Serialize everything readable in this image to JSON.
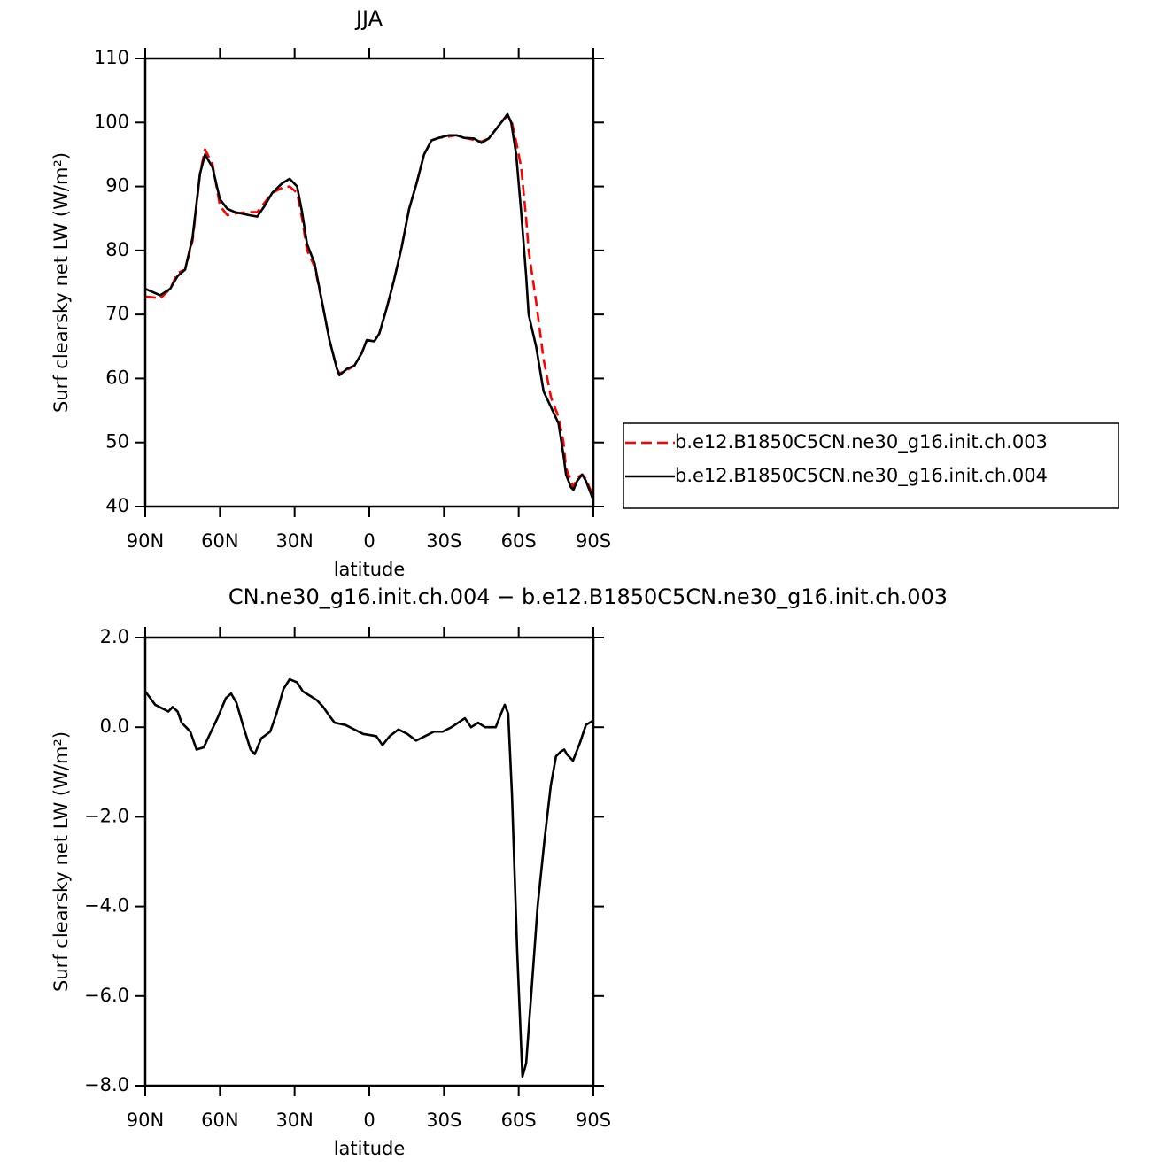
{
  "chart_data": [
    {
      "type": "line",
      "title": "JJA",
      "x_label": "latitude",
      "y_label": "Surf clearsky net LW (W/m²)",
      "x": [
        90,
        87,
        84,
        80,
        77,
        74,
        71,
        68,
        66,
        63,
        60,
        57,
        54,
        48,
        45,
        42,
        39,
        35,
        32,
        29,
        27,
        25,
        22,
        19,
        16,
        13,
        12,
        9,
        6,
        3,
        1,
        -2,
        -4,
        -7,
        -10,
        -13,
        -16,
        -19,
        -22,
        -25,
        -28,
        -32,
        -35,
        -38,
        -42,
        -45,
        -48,
        -51,
        -54,
        -55.5,
        -57,
        -59,
        -61,
        -63,
        -64,
        -67,
        -70,
        -73,
        -76,
        -78,
        -79,
        -81,
        -82,
        -83.5,
        -85.5,
        -87,
        -90
      ],
      "series": [
        {
          "name": "b.e12.B1850C5CN.ne30_g16.init.ch.003",
          "color": "#ff0000",
          "dashed": true,
          "values": [
            72.8,
            72.7,
            72.5,
            74,
            76.5,
            77,
            81.5,
            92,
            95.8,
            93.5,
            87,
            85.5,
            85.8,
            86,
            86,
            87.5,
            89,
            89.8,
            90,
            89,
            85,
            80,
            77.5,
            72,
            66,
            61.5,
            60.8,
            61.3,
            62,
            64,
            66,
            65.8,
            67,
            71,
            75.5,
            80.5,
            86.5,
            90.5,
            95,
            97.2,
            97.6,
            97.8,
            98,
            97.6,
            97.3,
            97,
            97.5,
            99,
            100.5,
            101,
            100.5,
            97,
            93,
            85,
            80,
            72,
            63,
            57,
            54,
            50,
            46,
            44,
            43,
            44.5,
            45,
            44.3,
            41.5
          ]
        },
        {
          "name": "b.e12.B1850C5CN.ne30_g16.init.ch.004",
          "color": "#000000",
          "dashed": false,
          "values": [
            74,
            73.5,
            73,
            74,
            76,
            77,
            82,
            92,
            95,
            93,
            88,
            86.5,
            86,
            85.5,
            85.3,
            87,
            89,
            90.5,
            91.2,
            90,
            86,
            81,
            78,
            72,
            66,
            61.5,
            60.5,
            61.5,
            62,
            64,
            66,
            65.8,
            67,
            71,
            75.5,
            80.5,
            86.5,
            90.5,
            95,
            97.2,
            97.6,
            98,
            98,
            97.6,
            97.5,
            96.8,
            97.5,
            99,
            100.5,
            101.3,
            100,
            95,
            86,
            76,
            70,
            65,
            58,
            55.5,
            53,
            48,
            45,
            43,
            42.6,
            44,
            45,
            44,
            41
          ]
        }
      ],
      "xlim": [
        90,
        -90
      ],
      "xticks": [
        {
          "value": 90,
          "label": "90N"
        },
        {
          "value": 60,
          "label": "60N"
        },
        {
          "value": 30,
          "label": "30N"
        },
        0,
        {
          "value": -30,
          "label": "30S"
        },
        {
          "value": -60,
          "label": "60S"
        },
        {
          "value": -90,
          "label": "90S"
        }
      ],
      "ylim": [
        40,
        110
      ],
      "yticks": [
        40,
        50,
        60,
        70,
        80,
        90,
        100,
        110
      ],
      "legend": "right"
    },
    {
      "type": "line",
      "title": "CN.ne30_g16.init.ch.004 − b.e12.B1850C5CN.ne30_g16.init.ch.003",
      "x_label": "latitude",
      "y_label": "Surf clearsky net LW (W/m²)",
      "x": [
        90,
        86,
        82.5,
        80.7,
        79,
        77,
        75.4,
        73.6,
        71.9,
        69.4,
        66.5,
        64,
        61,
        57.6,
        55.5,
        53.4,
        50.5,
        47.7,
        46,
        43.4,
        39.8,
        37.3,
        34.5,
        32,
        29,
        26.7,
        23.8,
        21,
        18.5,
        16,
        13.9,
        9.6,
        6,
        2.5,
        -2.8,
        -5.3,
        -8.2,
        -11.7,
        -15.3,
        -18.8,
        -22.4,
        -26,
        -29.5,
        -33,
        -38.4,
        -40.9,
        -43.7,
        -46.5,
        -50.8,
        -52.9,
        -54.4,
        -55.8,
        -57.3,
        -59.4,
        -61.5,
        -63,
        -65,
        -67.6,
        -70.4,
        -72.9,
        -75,
        -76.8,
        -78.3,
        -79.3,
        -81.8,
        -84.6,
        -87,
        -90
      ],
      "values": [
        0.8,
        0.5,
        0.4,
        0.35,
        0.45,
        0.35,
        0.1,
        0,
        -0.1,
        -0.5,
        -0.45,
        -0.15,
        0.2,
        0.65,
        0.75,
        0.55,
        0,
        -0.5,
        -0.6,
        -0.25,
        -0.1,
        0.3,
        0.85,
        1.07,
        1,
        0.8,
        0.7,
        0.6,
        0.45,
        0.25,
        0.1,
        0.05,
        -0.05,
        -0.15,
        -0.2,
        -0.4,
        -0.2,
        -0.05,
        -0.15,
        -0.3,
        -0.2,
        -0.1,
        -0.1,
        0,
        0.2,
        0,
        0.1,
        0,
        0,
        0.3,
        0.5,
        0.3,
        -1.5,
        -5,
        -7.8,
        -7.5,
        -6,
        -4,
        -2.5,
        -1.3,
        -0.65,
        -0.55,
        -0.5,
        -0.6,
        -0.75,
        -0.35,
        0.05,
        0.15
      ],
      "color": "#000000",
      "xlim": [
        90,
        -90
      ],
      "xticks": [
        {
          "value": 90,
          "label": "90N"
        },
        {
          "value": 60,
          "label": "60N"
        },
        {
          "value": 30,
          "label": "30N"
        },
        0,
        {
          "value": -30,
          "label": "30S"
        },
        {
          "value": -60,
          "label": "60S"
        },
        {
          "value": -90,
          "label": "90S"
        }
      ],
      "ylim": [
        -8,
        2
      ],
      "yticks": [
        {
          "value": -8,
          "label": "−8.0"
        },
        {
          "value": -6,
          "label": "−6.0"
        },
        {
          "value": -4,
          "label": "−4.0"
        },
        {
          "value": -2,
          "label": "−2.0"
        },
        {
          "value": 0,
          "label": "0.0"
        },
        {
          "value": 2,
          "label": "2.0"
        }
      ]
    }
  ]
}
